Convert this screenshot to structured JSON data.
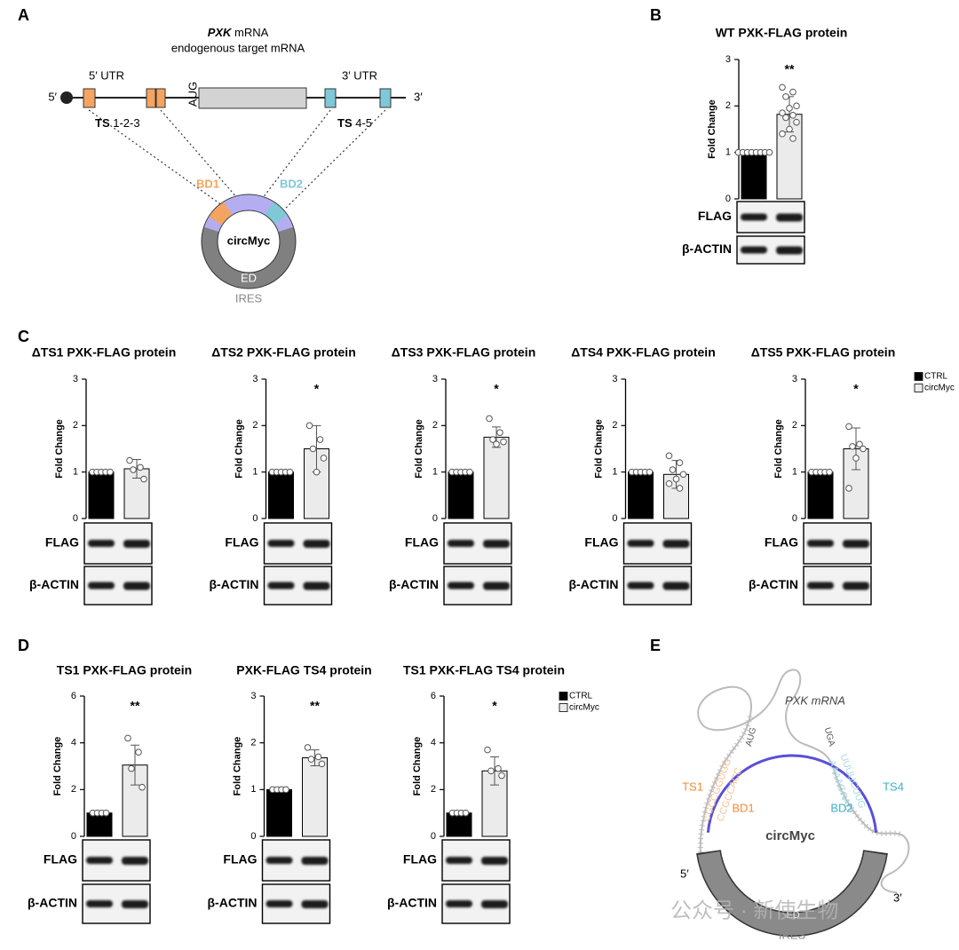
{
  "panel_labels": [
    "A",
    "B",
    "C",
    "D",
    "E"
  ],
  "diagram_a": {
    "gene": "PXK",
    "gene_rest": " mRNA",
    "subtitle": "endogenous target mRNA",
    "five_prime": "5′",
    "three_prime": "3′",
    "utr5": "5′ UTR",
    "utr3": "3′ UTR",
    "aug": "AUG",
    "ts_left_bold": "TS",
    "ts_left": " 1-2-3",
    "ts_right_bold": "TS",
    "ts_right": " 4-5",
    "bd1": "BD1",
    "bd2": "BD2",
    "circ": "circMyc",
    "ed": "ED",
    "ires": "IRES"
  },
  "diagram_e": {
    "mrna": "PXK mRNA",
    "aug": "AUG",
    "uga": "UGA",
    "ts1": "TS1",
    "ts4": "TS4",
    "bd1": "BD1",
    "bd2": "BD2",
    "seq1a": "CGCCGGUGG",
    "seq1b": "CCGCCACC",
    "seq4a": "UUUUCUUG",
    "seq4b": "AAAAGAAC",
    "circ": "circMyc",
    "five_prime": "5′",
    "three_prime": "3′",
    "ed": "ED",
    "ires": "IRES",
    "watermark": "公众号 · 新使生物"
  },
  "legends": [
    {
      "entries": [
        {
          "name": "CTRL",
          "color": "#000000"
        },
        {
          "name": "circMyc",
          "color": "#ebebeb"
        }
      ]
    },
    {
      "entries": [
        {
          "name": "CTRL",
          "color": "#000000"
        },
        {
          "name": "circMyc",
          "color": "#ebebeb"
        }
      ]
    }
  ],
  "chart_data": [
    {
      "type": "bar",
      "title": "WT PXK-FLAG protein",
      "ylabel": "Fold Change",
      "values": [
        1,
        1.82
      ],
      "errors": [
        0,
        0.38
      ],
      "colors": [
        "#000000",
        "#ebebeb"
      ],
      "points": [
        [
          1,
          1,
          1,
          1,
          1,
          1,
          1,
          1
        ],
        [
          2.4,
          2.3,
          2.2,
          2.0,
          1.95,
          1.85,
          1.8,
          1.75,
          1.65,
          1.5,
          1.4,
          1.3
        ]
      ],
      "significance": "**",
      "ylim": [
        0,
        3
      ],
      "yticks": [
        0,
        1,
        2,
        3
      ],
      "blot_labels": [
        "FLAG",
        "β-ACTIN"
      ]
    },
    {
      "type": "bar",
      "title": "ΔTS1 PXK-FLAG protein",
      "ylabel": "Fold Change",
      "values": [
        1,
        1.07
      ],
      "errors": [
        0,
        0.2
      ],
      "colors": [
        "#000000",
        "#ebebeb"
      ],
      "points": [
        [
          1,
          1,
          1,
          1,
          1
        ],
        [
          1.25,
          1.1,
          1.05,
          0.85
        ]
      ],
      "ylim": [
        0,
        3
      ],
      "yticks": [
        0,
        1,
        2,
        3
      ],
      "blot_labels": [
        "FLAG",
        "β-ACTIN"
      ]
    },
    {
      "type": "bar",
      "title": "ΔTS2 PXK-FLAG protein",
      "ylabel": "Fold Change",
      "values": [
        1,
        1.5
      ],
      "errors": [
        0,
        0.5
      ],
      "colors": [
        "#000000",
        "#ebebeb"
      ],
      "points": [
        [
          1,
          1,
          1,
          1,
          1
        ],
        [
          2.0,
          1.7,
          1.5,
          1.3,
          1.0
        ]
      ],
      "significance": "*",
      "ylim": [
        0,
        3
      ],
      "yticks": [
        0,
        1,
        2,
        3
      ],
      "blot_labels": [
        "FLAG",
        "β-ACTIN"
      ]
    },
    {
      "type": "bar",
      "title": "ΔTS3 PXK-FLAG protein",
      "ylabel": "Fold Change",
      "values": [
        1,
        1.75
      ],
      "errors": [
        0,
        0.22
      ],
      "colors": [
        "#000000",
        "#ebebeb"
      ],
      "points": [
        [
          1,
          1,
          1,
          1,
          1
        ],
        [
          2.15,
          1.85,
          1.7,
          1.65,
          1.6
        ]
      ],
      "significance": "*",
      "ylim": [
        0,
        3
      ],
      "yticks": [
        0,
        1,
        2,
        3
      ],
      "blot_labels": [
        "FLAG",
        "β-ACTIN"
      ]
    },
    {
      "type": "bar",
      "title": "ΔTS4 PXK-FLAG protein",
      "ylabel": "Fold Change",
      "values": [
        1,
        0.95
      ],
      "errors": [
        0,
        0.3
      ],
      "colors": [
        "#000000",
        "#ebebeb"
      ],
      "points": [
        [
          1,
          1,
          1,
          1,
          1
        ],
        [
          1.35,
          1.2,
          1.05,
          0.95,
          0.85,
          0.75,
          0.65
        ]
      ],
      "ylim": [
        0,
        3
      ],
      "yticks": [
        0,
        1,
        2,
        3
      ],
      "blot_labels": [
        "FLAG",
        "β-ACTIN"
      ]
    },
    {
      "type": "bar",
      "title": "ΔTS5 PXK-FLAG protein",
      "ylabel": "Fold Change",
      "values": [
        1,
        1.5
      ],
      "errors": [
        0,
        0.45
      ],
      "colors": [
        "#000000",
        "#ebebeb"
      ],
      "points": [
        [
          1,
          1,
          1,
          1,
          1
        ],
        [
          1.98,
          1.6,
          1.55,
          1.5,
          1.3,
          0.65
        ]
      ],
      "significance": "*",
      "ylim": [
        0,
        3
      ],
      "yticks": [
        0,
        1,
        2,
        3
      ],
      "blot_labels": [
        "FLAG",
        "β-ACTIN"
      ]
    },
    {
      "type": "bar",
      "title": "TS1 PXK-FLAG protein",
      "ylabel": "Fold Change",
      "values": [
        1,
        3.05
      ],
      "errors": [
        0,
        0.85
      ],
      "colors": [
        "#000000",
        "#ebebeb"
      ],
      "points": [
        [
          1,
          1,
          1,
          1
        ],
        [
          4.2,
          3.6,
          2.9,
          2.1
        ]
      ],
      "significance": "**",
      "ylim": [
        0,
        6
      ],
      "yticks": [
        0,
        2,
        4,
        6
      ],
      "blot_labels": [
        "FLAG",
        "β-ACTIN"
      ]
    },
    {
      "type": "bar",
      "title": "PXK-FLAG TS4 protein",
      "ylabel": "Fold Change",
      "values": [
        1,
        1.68
      ],
      "errors": [
        0,
        0.17
      ],
      "colors": [
        "#000000",
        "#ebebeb"
      ],
      "points": [
        [
          1,
          1,
          1,
          1
        ],
        [
          1.9,
          1.7,
          1.65,
          1.55
        ]
      ],
      "significance": "**",
      "ylim": [
        0,
        3
      ],
      "yticks": [
        0,
        1,
        2,
        3
      ],
      "blot_labels": [
        "FLAG",
        "β-ACTIN"
      ]
    },
    {
      "type": "bar",
      "title": "TS1 PXK-FLAG TS4 protein",
      "ylabel": "Fold Change",
      "values": [
        1,
        2.8
      ],
      "errors": [
        0,
        0.6
      ],
      "colors": [
        "#000000",
        "#ebebeb"
      ],
      "points": [
        [
          1,
          1,
          1,
          1
        ],
        [
          3.7,
          2.9,
          2.8,
          2.6
        ]
      ],
      "significance": "*",
      "ylim": [
        0,
        6
      ],
      "yticks": [
        0,
        2,
        4,
        6
      ],
      "blot_labels": [
        "FLAG",
        "β-ACTIN"
      ]
    }
  ]
}
